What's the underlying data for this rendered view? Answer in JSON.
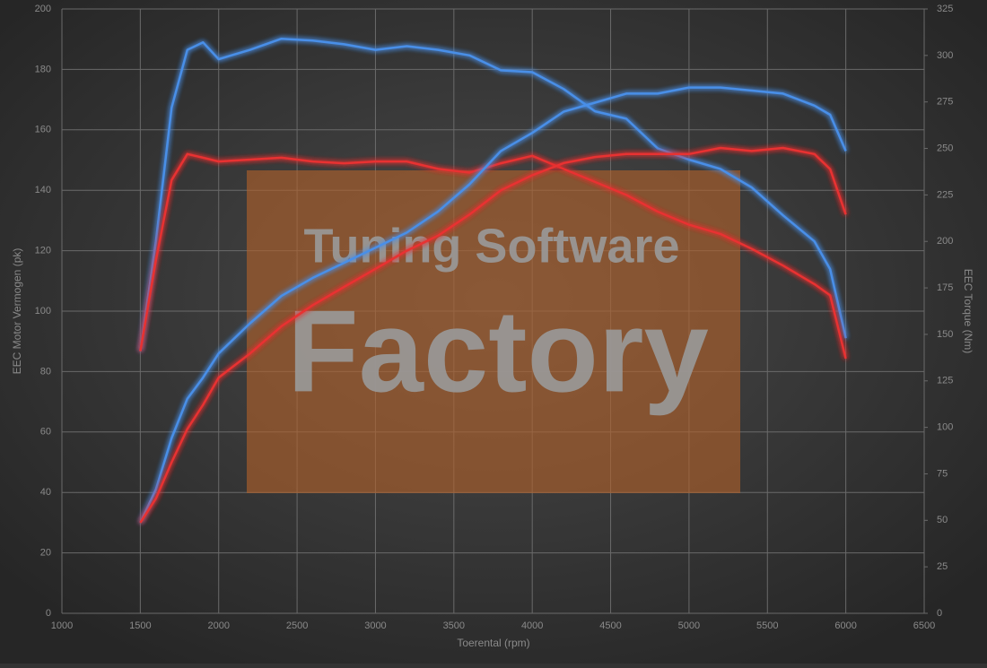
{
  "chart_data": {
    "type": "line",
    "x_label": "Toerental (rpm)",
    "y_label": "EEC Motor Vermogen (pk)",
    "y2_label": "EEC Torque (Nm)",
    "watermark": [
      "Tuning Software",
      "Factory"
    ],
    "x": [
      1500,
      1600,
      1700,
      1800,
      1900,
      2000,
      2200,
      2400,
      2600,
      2800,
      3000,
      3200,
      3400,
      3600,
      3800,
      4000,
      4200,
      4400,
      4600,
      4800,
      5000,
      5200,
      5400,
      5600,
      5800,
      5900,
      6000
    ],
    "series": [
      {
        "color": "#4a8fe8",
        "axis": "y2",
        "values": [
          141,
          200,
          272,
          303,
          307,
          298,
          303,
          309,
          308,
          306,
          303,
          305,
          303,
          300,
          292,
          291,
          282,
          270,
          266,
          250,
          244,
          239,
          229,
          214,
          200,
          185,
          148
        ]
      },
      {
        "color": "#e83030",
        "axis": "y2",
        "values": [
          141,
          190,
          233,
          247,
          245,
          243,
          244,
          245,
          243,
          242,
          243,
          243,
          239,
          237,
          242,
          246,
          239,
          232,
          225,
          216,
          209,
          204,
          196,
          187,
          177,
          171,
          137
        ]
      },
      {
        "color": "#4a8fe8",
        "axis": "y",
        "values": [
          30,
          41,
          58,
          71,
          78,
          86,
          96,
          105,
          111,
          116,
          121,
          126,
          133,
          142,
          153,
          159,
          166,
          169,
          172,
          172,
          174,
          174,
          173,
          172,
          168,
          165,
          153
        ]
      },
      {
        "color": "#e83030",
        "axis": "y",
        "values": [
          30,
          38,
          50,
          61,
          69,
          78,
          86,
          95,
          102,
          108,
          114,
          120,
          125,
          132,
          140,
          145,
          149,
          151,
          152,
          152,
          152,
          154,
          153,
          154,
          152,
          147,
          132
        ]
      }
    ],
    "xlim": [
      1000,
      6500
    ],
    "xticks": [
      1000,
      1500,
      2000,
      2500,
      3000,
      3500,
      4000,
      4500,
      5000,
      5500,
      6000,
      6500
    ],
    "ylim": [
      0,
      200
    ],
    "yticks": [
      0,
      20,
      40,
      60,
      80,
      100,
      120,
      140,
      160,
      180,
      200
    ],
    "y2lim": [
      0,
      325
    ],
    "y2ticks": [
      0,
      25,
      50,
      75,
      100,
      125,
      150,
      175,
      200,
      225,
      250,
      275,
      300,
      325
    ],
    "grid": true
  }
}
